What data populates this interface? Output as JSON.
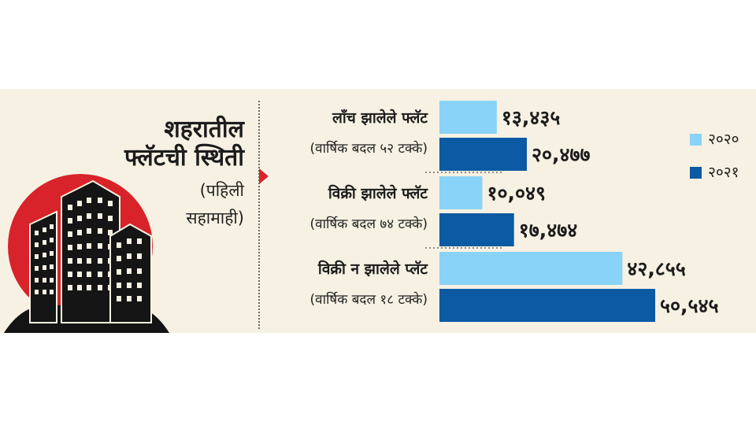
{
  "heading": {
    "line1": "शहरातील",
    "line2": "फ्लॅटची स्थिती",
    "sub1": "(पहिली",
    "sub2": "सहामाही)"
  },
  "colors": {
    "panel": "#f6f1e3",
    "series_2020": "#88d3f7",
    "series_2021": "#0b5aa3",
    "accent": "#d8232a"
  },
  "icons": [
    "city-skyline-icon",
    "pointer-arrow-icon"
  ],
  "chart_data": {
    "type": "bar",
    "orientation": "horizontal",
    "categories": [
      {
        "label": "लाँच झालेले फ्लॅट",
        "note": "(वार्षिक बदल ५२ टक्के)"
      },
      {
        "label": "विक्री झालेले फ्लॅट",
        "note": "(वार्षिक बदल ७४ टक्के)"
      },
      {
        "label": "विक्री न झालेले प्लॅट",
        "note": "(वार्षिक बदल १८ टक्के)"
      }
    ],
    "series": [
      {
        "name": "२०२०",
        "values": [
          13435,
          10049,
          42855
        ],
        "value_labels": [
          "१३,४३५",
          "१०,०४९",
          "४२,८५५"
        ]
      },
      {
        "name": "२०२१",
        "values": [
          20477,
          17474,
          50545
        ],
        "value_labels": [
          "२०,४७७",
          "१७,४७४",
          "५०,५४५"
        ]
      }
    ],
    "legend": {
      "position": "right"
    },
    "grid": false,
    "xlim": [
      0,
      50545
    ]
  }
}
